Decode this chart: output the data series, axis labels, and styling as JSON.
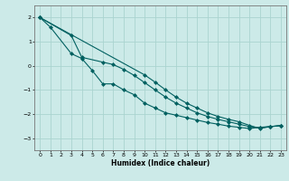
{
  "xlabel": "Humidex (Indice chaleur)",
  "line_color": "#006060",
  "marker": "D",
  "marker_size": 2.0,
  "bg_color": "#cceae8",
  "grid_color": "#aad4d0",
  "ylim": [
    -3.5,
    2.5
  ],
  "xlim": [
    -0.5,
    23.5
  ],
  "yticks": [
    -3,
    -2,
    -1,
    0,
    1,
    2
  ],
  "line1_x": [
    0,
    1,
    3,
    4,
    5,
    6,
    7,
    8,
    9,
    10,
    11,
    12,
    13,
    14,
    15,
    16,
    17,
    18,
    19,
    20,
    21,
    22,
    23
  ],
  "line1_y": [
    2.0,
    1.6,
    0.5,
    0.3,
    -0.2,
    -0.75,
    -0.75,
    -1.0,
    -1.2,
    -1.55,
    -1.75,
    -1.95,
    -2.05,
    -2.15,
    -2.25,
    -2.35,
    -2.42,
    -2.5,
    -2.55,
    -2.6,
    -2.55,
    -2.52,
    -2.48
  ],
  "line2_x": [
    0,
    3,
    4,
    6,
    7,
    8,
    9,
    10,
    11,
    12,
    13,
    14,
    15,
    16,
    17,
    18,
    19,
    20,
    21,
    22,
    23
  ],
  "line2_y": [
    2.0,
    1.25,
    0.35,
    0.15,
    0.05,
    -0.15,
    -0.4,
    -0.7,
    -1.0,
    -1.3,
    -1.55,
    -1.75,
    -1.95,
    -2.1,
    -2.22,
    -2.32,
    -2.42,
    -2.52,
    -2.57,
    -2.52,
    -2.48
  ],
  "line3_x": [
    0,
    10,
    11,
    12,
    13,
    14,
    15,
    16,
    17,
    18,
    19,
    20,
    21,
    22,
    23
  ],
  "line3_y": [
    2.0,
    -0.38,
    -0.68,
    -1.0,
    -1.3,
    -1.55,
    -1.75,
    -1.95,
    -2.1,
    -2.22,
    -2.32,
    -2.47,
    -2.6,
    -2.52,
    -2.48
  ]
}
